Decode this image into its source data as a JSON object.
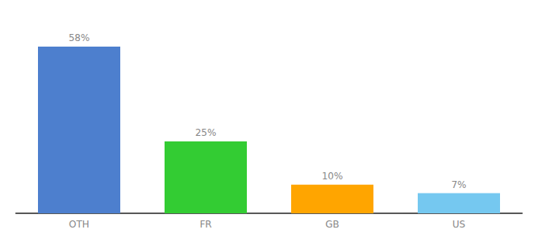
{
  "chart_data": {
    "type": "bar",
    "categories": [
      "OTH",
      "FR",
      "GB",
      "US"
    ],
    "values": [
      58,
      25,
      10,
      7
    ],
    "value_labels": [
      "58%",
      "25%",
      "10%",
      "7%"
    ],
    "colors": [
      "#4d7fce",
      "#33cc33",
      "#ffa500",
      "#75c8f0"
    ],
    "ylim": [
      0,
      66
    ],
    "grid": false,
    "data_labels": true,
    "tick_labels": "x"
  }
}
